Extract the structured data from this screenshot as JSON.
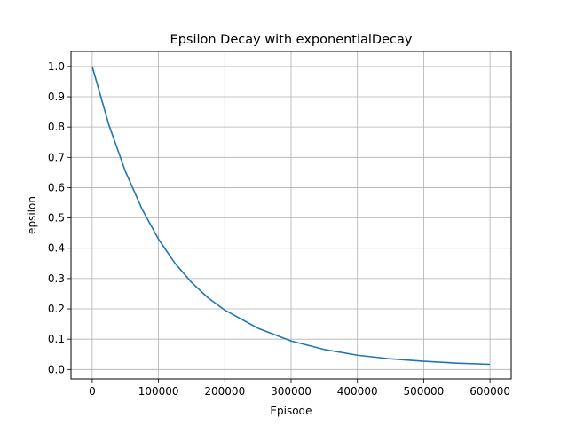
{
  "chart_data": {
    "type": "line",
    "title": "Epsilon Decay with exponentialDecay",
    "xlabel": "Episode",
    "ylabel": "epsilon",
    "xlim": [
      -32000,
      632000
    ],
    "ylim": [
      -0.0313,
      1.0494
    ],
    "xticks": [
      0,
      100000,
      200000,
      300000,
      400000,
      500000,
      600000
    ],
    "xtick_labels": [
      "0",
      "100000",
      "200000",
      "300000",
      "400000",
      "500000",
      "600000"
    ],
    "yticks": [
      0.0,
      0.1,
      0.2,
      0.3,
      0.4,
      0.5,
      0.6,
      0.7,
      0.8,
      0.9,
      1.0
    ],
    "ytick_labels": [
      "0.0",
      "0.1",
      "0.2",
      "0.3",
      "0.4",
      "0.5",
      "0.6",
      "0.7",
      "0.8",
      "0.9",
      "1.0"
    ],
    "grid": true,
    "line_color": "#1f77b4",
    "grid_color": "#b0b0b0",
    "series": [
      {
        "x": [
          0,
          25000,
          50000,
          75000,
          100000,
          125000,
          150000,
          175000,
          200000,
          250000,
          300000,
          350000,
          400000,
          450000,
          500000,
          550000,
          600000
        ],
        "values": [
          1.0,
          0.808,
          0.654,
          0.53,
          0.43,
          0.35,
          0.287,
          0.236,
          0.196,
          0.136,
          0.094,
          0.066,
          0.047,
          0.035,
          0.027,
          0.021,
          0.017
        ]
      }
    ]
  }
}
